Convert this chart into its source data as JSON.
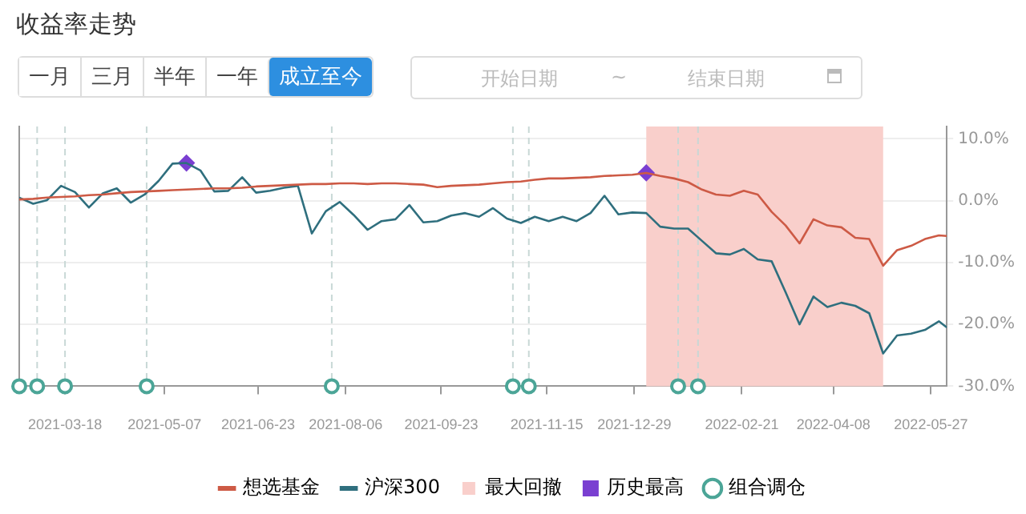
{
  "chart_data": {
    "type": "line",
    "title": "收益率走势",
    "annotations": [
      "一月",
      "三月",
      "半年",
      "一年",
      "成立至今",
      "开始日期",
      "~",
      "结束日期"
    ],
    "x": [
      "2021-02-23",
      "2021-03-02",
      "2021-03-09",
      "2021-03-16",
      "2021-03-23",
      "2021-03-30",
      "2021-04-06",
      "2021-04-13",
      "2021-04-20",
      "2021-04-27",
      "2021-05-04",
      "2021-05-11",
      "2021-05-18",
      "2021-05-25",
      "2021-06-01",
      "2021-06-08",
      "2021-06-15",
      "2021-06-22",
      "2021-06-29",
      "2021-07-06",
      "2021-07-13",
      "2021-07-20",
      "2021-07-27",
      "2021-08-03",
      "2021-08-10",
      "2021-08-17",
      "2021-08-24",
      "2021-08-31",
      "2021-09-07",
      "2021-09-14",
      "2021-09-21",
      "2021-09-28",
      "2021-10-05",
      "2021-10-12",
      "2021-10-19",
      "2021-10-26",
      "2021-11-02",
      "2021-11-09",
      "2021-11-16",
      "2021-11-23",
      "2021-11-30",
      "2021-12-07",
      "2021-12-14",
      "2021-12-21",
      "2021-12-28",
      "2022-01-04",
      "2022-01-11",
      "2022-01-18",
      "2022-01-25",
      "2022-02-01",
      "2022-02-08",
      "2022-02-15",
      "2022-02-22",
      "2022-03-01",
      "2022-03-08",
      "2022-03-15",
      "2022-03-22",
      "2022-03-29",
      "2022-04-05",
      "2022-04-12",
      "2022-04-19",
      "2022-04-26",
      "2022-05-03",
      "2022-05-10",
      "2022-05-17",
      "2022-05-24",
      "2022-05-31",
      "2022-06-04"
    ],
    "series": [
      {
        "name": "想选基金",
        "color": "#cd5a45",
        "marker": "none",
        "values": [
          0.2,
          0.3,
          0.5,
          0.6,
          0.7,
          0.9,
          1.0,
          1.2,
          1.4,
          1.5,
          1.6,
          1.7,
          1.8,
          1.9,
          2.0,
          2.0,
          2.1,
          2.3,
          2.4,
          2.5,
          2.6,
          2.7,
          2.7,
          2.8,
          2.8,
          2.7,
          2.8,
          2.8,
          2.7,
          2.6,
          2.2,
          2.4,
          2.5,
          2.6,
          2.8,
          3.0,
          3.1,
          3.4,
          3.6,
          3.6,
          3.7,
          3.8,
          4.0,
          4.1,
          4.2,
          4.5,
          4.0,
          3.6,
          3.0,
          1.8,
          1.0,
          0.8,
          1.6,
          1.0,
          -1.8,
          -4.0,
          -6.9,
          -3.0,
          -4.0,
          -4.3,
          -6.0,
          -6.2,
          -10.5,
          -8.0,
          -7.3,
          -6.2,
          -5.6,
          -5.7
        ]
      },
      {
        "name": "沪深300",
        "color": "#2f6f7e",
        "marker": "none",
        "values": [
          0.5,
          -0.5,
          0.1,
          2.4,
          1.4,
          -1.1,
          1.2,
          2.0,
          -0.3,
          1.0,
          3.2,
          6.0,
          6.1,
          4.9,
          1.5,
          1.6,
          3.8,
          1.3,
          1.6,
          2.1,
          2.4,
          -5.3,
          -1.7,
          -0.2,
          -2.3,
          -4.7,
          -3.3,
          -3.0,
          -0.7,
          -3.5,
          -3.3,
          -2.4,
          -2.0,
          -2.6,
          -1.2,
          -2.9,
          -3.6,
          -2.6,
          -3.3,
          -2.6,
          -3.3,
          -2.0,
          0.8,
          -2.2,
          -1.9,
          -2.0,
          -4.2,
          -4.5,
          -4.5,
          -6.5,
          -8.5,
          -8.7,
          -7.8,
          -9.5,
          -9.8,
          -14.8,
          -20.0,
          -15.5,
          -17.2,
          -16.5,
          -17.0,
          -18.2,
          -24.7,
          -21.8,
          -21.5,
          -20.9,
          -19.5,
          -20.5
        ]
      },
      {
        "name": "历史最高",
        "type": "scatter",
        "color": "#7a3fd1",
        "marker": "diamond",
        "x": [
          "2021-05-18",
          "2022-01-04"
        ],
        "values": [
          6.1,
          4.5
        ]
      },
      {
        "name": "组合调仓",
        "type": "scatter",
        "color": "#4ba597",
        "marker": "circle",
        "x": [
          "2021-02-23",
          "2021-03-04",
          "2021-03-18",
          "2021-04-28",
          "2021-07-30",
          "2021-10-29",
          "2021-11-06",
          "2022-01-20",
          "2022-01-30"
        ],
        "values": [
          -30,
          -30,
          -30,
          -30,
          -30,
          -30,
          -30,
          -30,
          -30
        ]
      }
    ],
    "bands": [
      {
        "axis": "x",
        "from": "2022-01-04",
        "to": "2022-05-03",
        "label": "最大回撤",
        "color": "#f9cfcb"
      }
    ],
    "ref_lines": [
      {
        "axis": "x",
        "value": "2021-03-04",
        "color": "#c8d8d6",
        "line_style": "dashed"
      },
      {
        "axis": "x",
        "value": "2021-03-18",
        "color": "#c8d8d6",
        "line_style": "dashed"
      },
      {
        "axis": "x",
        "value": "2021-04-28",
        "color": "#c8d8d6",
        "line_style": "dashed"
      },
      {
        "axis": "x",
        "value": "2021-07-30",
        "color": "#c8d8d6",
        "line_style": "dashed"
      },
      {
        "axis": "x",
        "value": "2021-10-29",
        "color": "#c8d8d6",
        "line_style": "dashed"
      },
      {
        "axis": "x",
        "value": "2021-11-06",
        "color": "#c8d8d6",
        "line_style": "dashed"
      },
      {
        "axis": "x",
        "value": "2022-01-20",
        "color": "#c8d8d6",
        "line_style": "dashed"
      },
      {
        "axis": "x",
        "value": "2022-01-30",
        "color": "#c8d8d6",
        "line_style": "dashed"
      }
    ],
    "xlim": [
      "2021-02-23",
      "2022-06-04"
    ],
    "xticks": [
      "2021-03-18",
      "2021-05-07",
      "2021-06-23",
      "2021-08-06",
      "2021-09-23",
      "2021-11-15",
      "2021-12-29",
      "2022-02-21",
      "2022-04-08",
      "2022-05-27"
    ],
    "ylim": [
      -30,
      12
    ],
    "yticks": [
      {
        "value": -30,
        "label": "-30.0%"
      },
      {
        "value": -20,
        "label": "-20.0%"
      },
      {
        "value": -10,
        "label": "-10.0%"
      },
      {
        "value": 0,
        "label": "0.0%"
      },
      {
        "value": 10,
        "label": "10.0%"
      }
    ],
    "grid": "y",
    "legend": "bottom"
  }
}
